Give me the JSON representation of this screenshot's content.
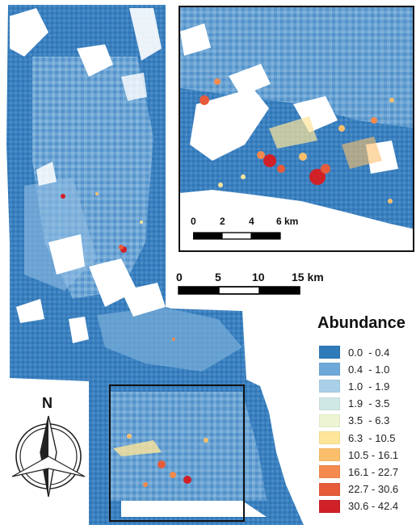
{
  "legend": {
    "title": "Abundance",
    "classes": [
      {
        "label": "0.0  - 0.4",
        "color": "#2f7ab8"
      },
      {
        "label": "0.4  - 1.0",
        "color": "#6ea8d8"
      },
      {
        "label": "1.0  - 1.9",
        "color": "#a9d0e8"
      },
      {
        "label": "1.9  - 3.5",
        "color": "#cfe8e6"
      },
      {
        "label": "3.5  - 6.3",
        "color": "#edf4d3"
      },
      {
        "label": "6.3  - 10.5",
        "color": "#fde59a"
      },
      {
        "label": "10.5 - 16.1",
        "color": "#fbbf6c"
      },
      {
        "label": "16.1 - 22.7",
        "color": "#f48a4e"
      },
      {
        "label": "22.7 - 30.6",
        "color": "#e65b3a"
      },
      {
        "label": "30.6 - 42.4",
        "color": "#cf2127"
      }
    ]
  },
  "main_scale_bar": {
    "labels": [
      "0",
      "5",
      "10",
      "15 km"
    ]
  },
  "inset_scale_bar": {
    "labels": [
      "0",
      "2",
      "4",
      "6 km"
    ]
  },
  "north_arrow": {
    "label": "N",
    "icon": "north-arrow-icon"
  },
  "inset_frame": {
    "color": "#111111"
  }
}
